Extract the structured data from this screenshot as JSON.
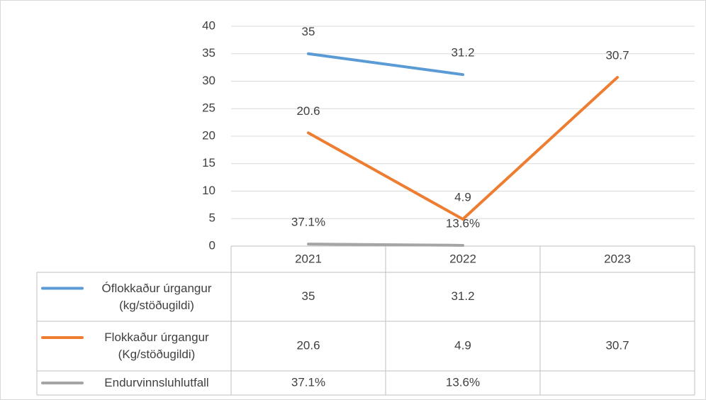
{
  "chart_data": {
    "type": "line",
    "categories": [
      "2021",
      "2022",
      "2023"
    ],
    "series": [
      {
        "name": "Óflokkaður úrgangur (kg/stöðugildi)",
        "color": "#5b9bd5",
        "values": [
          35,
          31.2,
          null
        ]
      },
      {
        "name": "Flokkaður úrgangur (Kg/stöðugildi)",
        "color": "#ed7d31",
        "values": [
          20.6,
          4.9,
          30.7
        ]
      },
      {
        "name": "Endurvinnsluhlutfall",
        "color": "#a5a5a5",
        "values": [
          0.371,
          0.136,
          null
        ],
        "value_labels": [
          "37.1%",
          "13.6%",
          null
        ]
      }
    ],
    "ylim": [
      0,
      40
    ],
    "yticks": [
      0,
      5,
      10,
      15,
      20,
      25,
      30,
      35,
      40
    ],
    "grid": true,
    "data_table": true
  }
}
